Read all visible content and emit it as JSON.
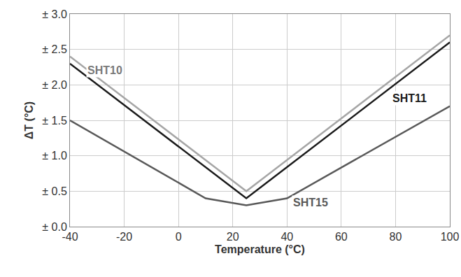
{
  "chart_data": {
    "type": "line",
    "x_label": "Temperature (°C)",
    "y_label": "ΔT (°C)",
    "xlim": [
      -40,
      100
    ],
    "xticks": [
      -40,
      -20,
      0,
      20,
      40,
      60,
      80,
      100
    ],
    "ylim": [
      0,
      3
    ],
    "yticks": [
      {
        "value": 0,
        "label": "± 0.0"
      },
      {
        "value": 0.5,
        "label": "± 0.5"
      },
      {
        "value": 1,
        "label": "± 1.0"
      },
      {
        "value": 1.5,
        "label": "± 1.5"
      },
      {
        "value": 2,
        "label": "± 2.0"
      },
      {
        "value": 2.5,
        "label": "± 2.5"
      },
      {
        "value": 3,
        "label": "± 3.0"
      }
    ],
    "grid": true,
    "series": [
      {
        "name": "SHT10",
        "color": "#a6a6a6",
        "x": [
          -40,
          25,
          100
        ],
        "values": [
          2.4,
          0.5,
          2.7
        ]
      },
      {
        "name": "SHT11",
        "color": "#1a1a1a",
        "x": [
          -40,
          25,
          100
        ],
        "values": [
          2.3,
          0.4,
          2.6
        ]
      },
      {
        "name": "SHT15",
        "color": "#595959",
        "x": [
          -40,
          10,
          25,
          40,
          100
        ],
        "values": [
          1.5,
          0.4,
          0.3,
          0.4,
          1.7
        ]
      }
    ]
  }
}
